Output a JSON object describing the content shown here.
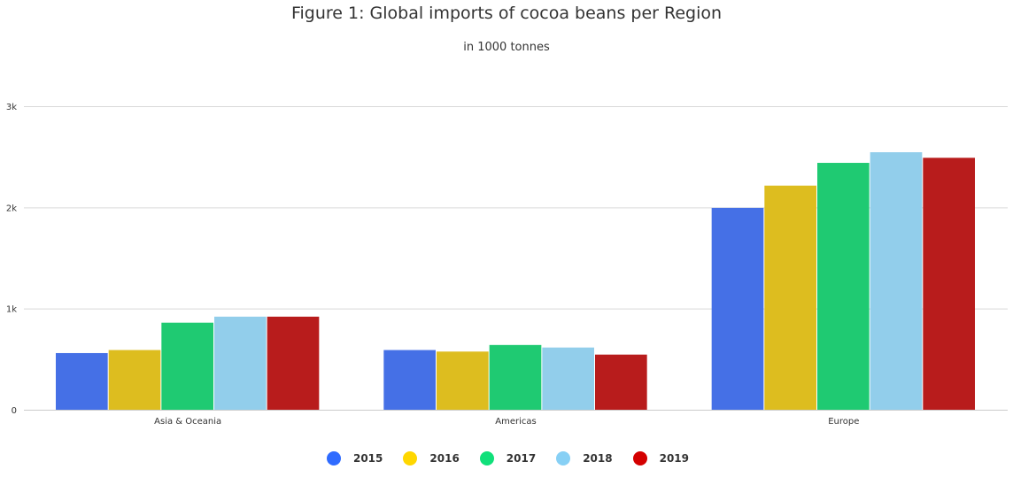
{
  "chart_data": {
    "type": "bar",
    "title": "Figure 1: Global imports of cocoa beans per Region",
    "subtitle": "in 1000 tonnes",
    "categories": [
      "Asia & Oceania",
      "Americas",
      "Europe"
    ],
    "series": [
      {
        "name": "2015",
        "color": "#4570e6",
        "legend_color": "#2f6bff",
        "values": [
          560,
          590,
          1995
        ]
      },
      {
        "name": "2016",
        "color": "#ddbd1f",
        "legend_color": "#ffd700",
        "values": [
          590,
          575,
          2215
        ]
      },
      {
        "name": "2017",
        "color": "#1fca72",
        "legend_color": "#10e07a",
        "values": [
          860,
          640,
          2440
        ]
      },
      {
        "name": "2018",
        "color": "#92ceeb",
        "legend_color": "#87d0f5",
        "values": [
          920,
          615,
          2545
        ]
      },
      {
        "name": "2019",
        "color": "#b81c1c",
        "legend_color": "#d40000",
        "values": [
          920,
          545,
          2490
        ]
      }
    ],
    "y_ticks": [
      {
        "value": 0,
        "label": "0"
      },
      {
        "value": 1000,
        "label": "1k"
      },
      {
        "value": 2000,
        "label": "2k"
      },
      {
        "value": 3000,
        "label": "3k"
      }
    ],
    "ylim": [
      0,
      3000
    ],
    "grid": true,
    "legend_position": "bottom-center",
    "xlabel": "",
    "ylabel": ""
  }
}
